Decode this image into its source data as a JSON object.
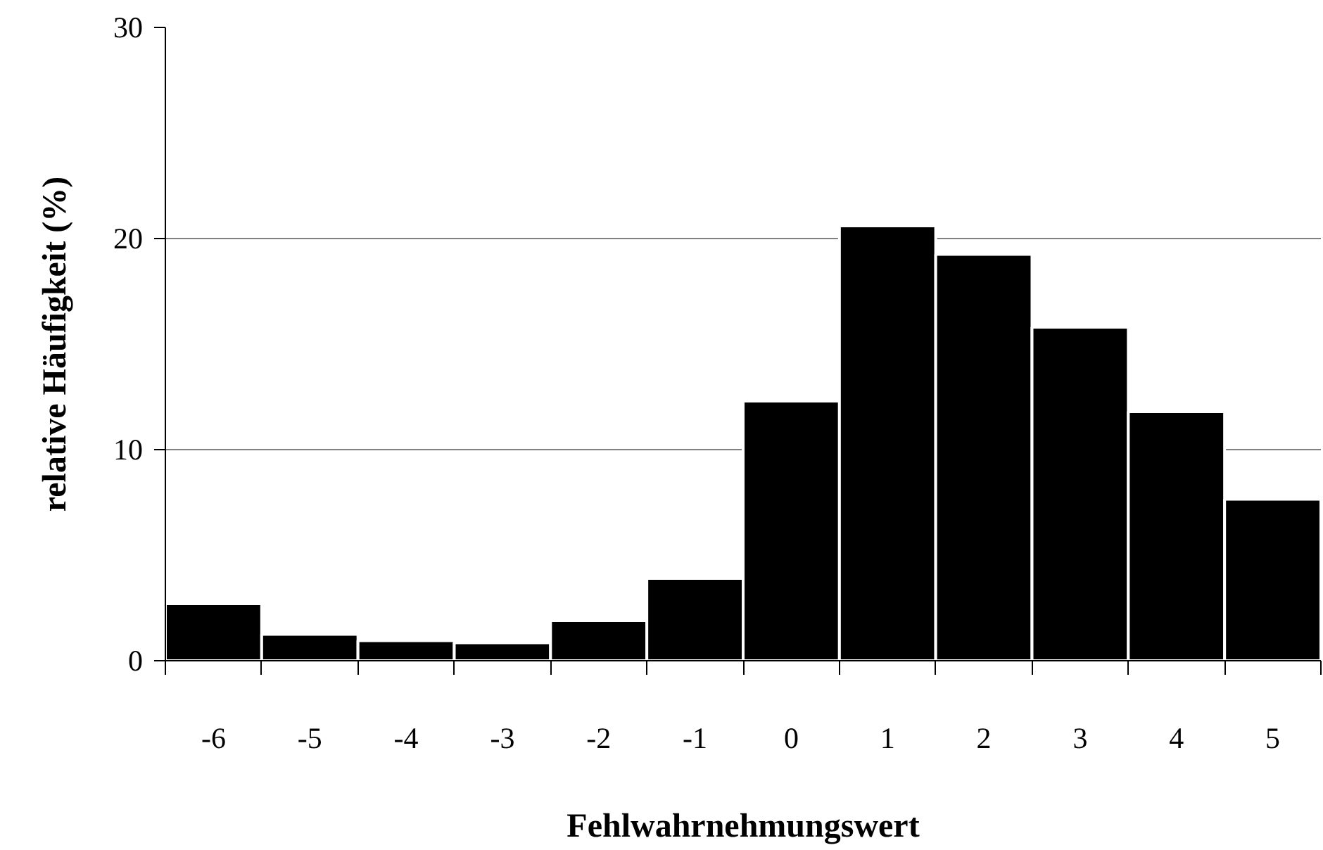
{
  "chart_data": {
    "type": "bar",
    "xlabel": "Fehlwahrnehmungswert",
    "ylabel": "relative Häufigkeit (%)",
    "categories": [
      "-6",
      "-5",
      "-4",
      "-3",
      "-2",
      "-1",
      "0",
      "1",
      "2",
      "3",
      "4",
      "5"
    ],
    "values": [
      2.7,
      1.25,
      0.95,
      0.85,
      1.9,
      3.9,
      12.3,
      20.6,
      19.25,
      15.8,
      11.8,
      7.65
    ],
    "color": "#000000",
    "ylim": [
      0,
      30
    ],
    "yticks": [
      0,
      10,
      20,
      30
    ],
    "grid": "y"
  }
}
